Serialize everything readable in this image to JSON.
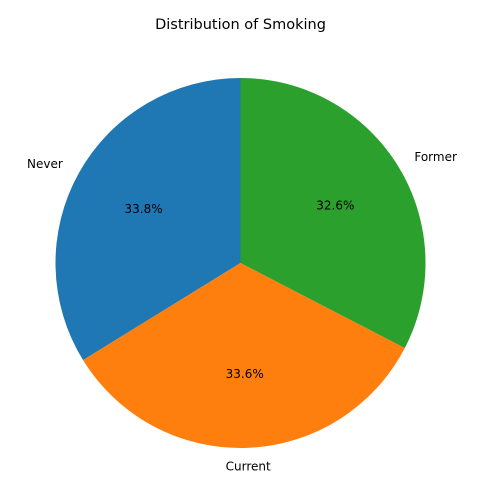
{
  "chart_data": {
    "type": "pie",
    "title": "Distribution of Smoking",
    "categories": [
      "Never",
      "Current",
      "Former"
    ],
    "values": [
      33.8,
      33.6,
      32.6
    ],
    "value_labels": [
      "33.8%",
      "33.6%",
      "32.6%"
    ],
    "colors": [
      "#1f77b4",
      "#ff7f0e",
      "#2ca02c"
    ],
    "start_angle": 90,
    "direction": "counterclockwise",
    "legend": "none"
  }
}
